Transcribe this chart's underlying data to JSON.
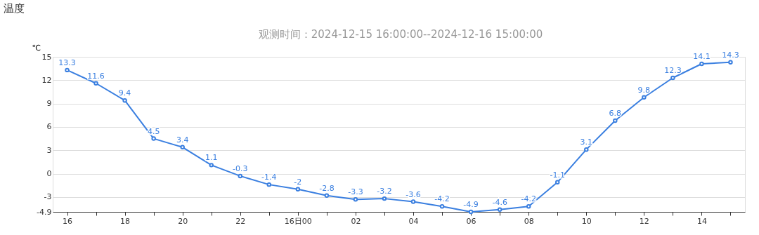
{
  "chart_data": {
    "type": "line",
    "title": "温度",
    "subtitle": "观测时间：2024-12-15 16:00:00--2024-12-16 15:00:00",
    "ylabel": "℃",
    "categories": [
      "16",
      null,
      "18",
      null,
      "20",
      null,
      "22",
      null,
      "16日00",
      null,
      "02",
      null,
      "04",
      null,
      "06",
      null,
      "08",
      null,
      "10",
      null,
      "12",
      null,
      "14",
      null
    ],
    "series": [
      {
        "color": "#3a7fe0",
        "values": [
          13.3,
          11.6,
          9.4,
          4.5,
          3.4,
          1.1,
          -0.3,
          -1.4,
          -2,
          -2.8,
          -3.3,
          -3.2,
          -3.6,
          -4.2,
          -4.9,
          -4.6,
          -4.2,
          -1.1,
          3.1,
          6.8,
          9.8,
          12.3,
          14.1,
          14.3
        ]
      }
    ],
    "ylim": [
      -4.9,
      15
    ],
    "yticks": [
      {
        "value": -4.9,
        "label": "-4.9"
      },
      -3,
      0,
      3,
      6,
      9,
      12,
      15
    ],
    "grid": "y",
    "marker": "circle",
    "line_style": "solid",
    "data_labels": true
  }
}
